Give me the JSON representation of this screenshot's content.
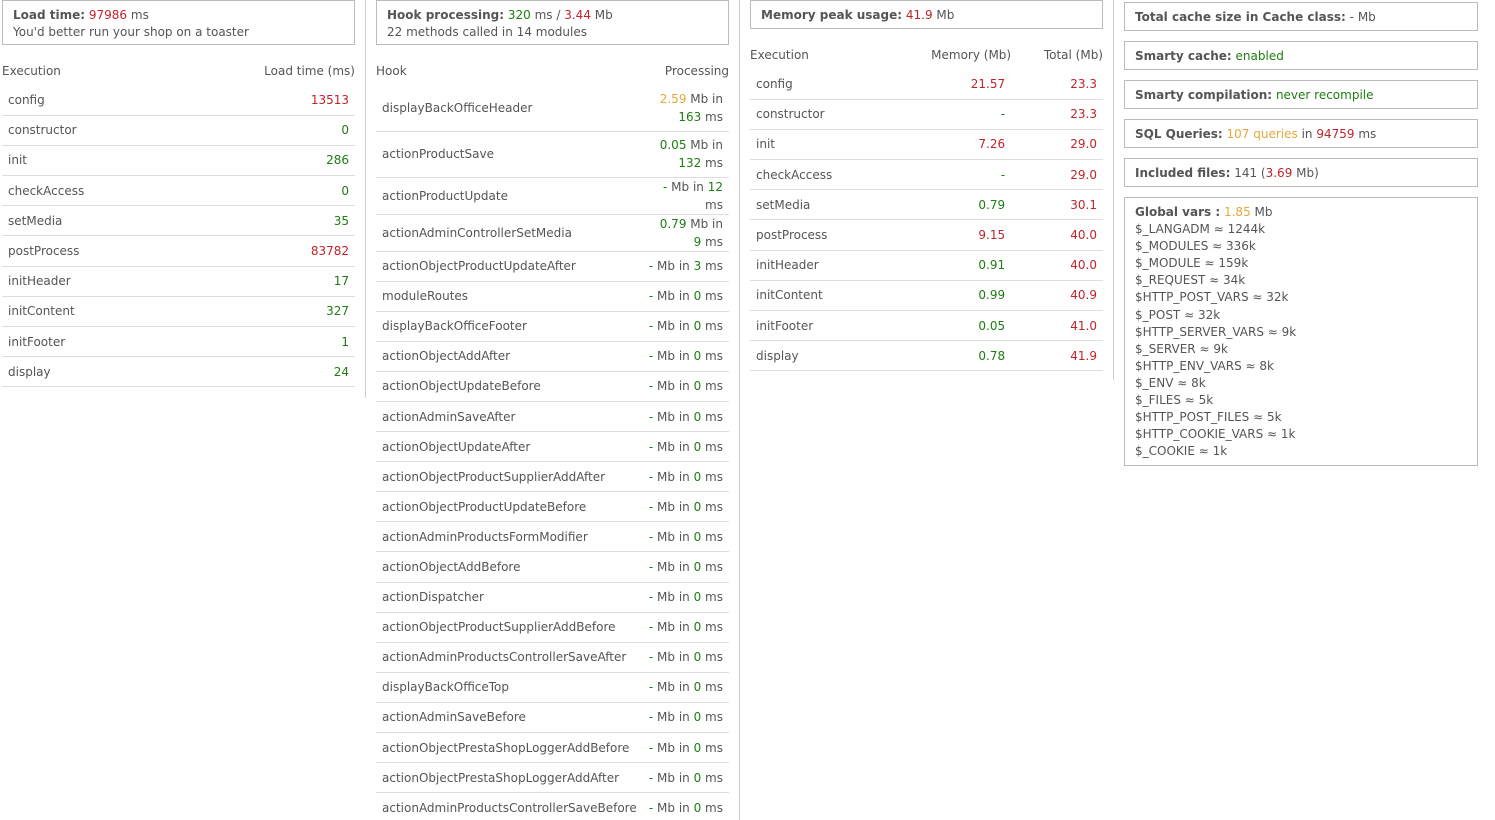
{
  "load": {
    "label": "Load time:",
    "value": "97986",
    "unit": "ms",
    "message": "You'd better run your shop on a toaster",
    "headers": [
      "Execution",
      "Load time (ms)"
    ],
    "rows": [
      {
        "name": "config",
        "value": "13513",
        "color": "#c0242b"
      },
      {
        "name": "constructor",
        "value": "0",
        "color": "#1e7d12"
      },
      {
        "name": "init",
        "value": "286",
        "color": "#1e7d12"
      },
      {
        "name": "checkAccess",
        "value": "0",
        "color": "#1e7d12"
      },
      {
        "name": "setMedia",
        "value": "35",
        "color": "#1e7d12"
      },
      {
        "name": "postProcess",
        "value": "83782",
        "color": "#c0242b"
      },
      {
        "name": "initHeader",
        "value": "17",
        "color": "#1e7d12"
      },
      {
        "name": "initContent",
        "value": "327",
        "color": "#1e7d12"
      },
      {
        "name": "initFooter",
        "value": "1",
        "color": "#1e7d12"
      },
      {
        "name": "display",
        "value": "24",
        "color": "#1e7d12"
      }
    ]
  },
  "hooks": {
    "label": "Hook processing:",
    "time": "320",
    "time_unit": "ms /",
    "mem": "3.44",
    "mem_unit": "Mb",
    "summary": "22 methods called in 14 modules",
    "headers": [
      "Hook",
      "Processing"
    ],
    "rows": [
      {
        "name": "displayBackOfficeHeader",
        "mem": "2.59",
        "mem_color": "#e8a73a",
        "time": "163",
        "time_color": "#1e7d12"
      },
      {
        "name": "actionProductSave",
        "mem": "0.05",
        "mem_color": "#1e7d12",
        "time": "132",
        "time_color": "#1e7d12"
      },
      {
        "name": "actionProductUpdate",
        "mem": "-",
        "mem_color": "#1e7d12",
        "time": "12",
        "time_color": "#1e7d12"
      },
      {
        "name": "actionAdminControllerSetMedia",
        "mem": "0.79",
        "mem_color": "#1e7d12",
        "time": "9",
        "time_color": "#1e7d12"
      },
      {
        "name": "actionObjectProductUpdateAfter",
        "mem": "-",
        "mem_color": "#1e7d12",
        "time": "3",
        "time_color": "#1e7d12"
      },
      {
        "name": "moduleRoutes",
        "mem": "-",
        "mem_color": "#1e7d12",
        "time": "0",
        "time_color": "#1e7d12"
      },
      {
        "name": "displayBackOfficeFooter",
        "mem": "-",
        "mem_color": "#1e7d12",
        "time": "0",
        "time_color": "#1e7d12"
      },
      {
        "name": "actionObjectAddAfter",
        "mem": "-",
        "mem_color": "#1e7d12",
        "time": "0",
        "time_color": "#1e7d12"
      },
      {
        "name": "actionObjectUpdateBefore",
        "mem": "-",
        "mem_color": "#1e7d12",
        "time": "0",
        "time_color": "#1e7d12"
      },
      {
        "name": "actionAdminSaveAfter",
        "mem": "-",
        "mem_color": "#1e7d12",
        "time": "0",
        "time_color": "#1e7d12"
      },
      {
        "name": "actionObjectUpdateAfter",
        "mem": "-",
        "mem_color": "#1e7d12",
        "time": "0",
        "time_color": "#1e7d12"
      },
      {
        "name": "actionObjectProductSupplierAddAfter",
        "mem": "-",
        "mem_color": "#1e7d12",
        "time": "0",
        "time_color": "#1e7d12"
      },
      {
        "name": "actionObjectProductUpdateBefore",
        "mem": "-",
        "mem_color": "#1e7d12",
        "time": "0",
        "time_color": "#1e7d12"
      },
      {
        "name": "actionAdminProductsFormModifier",
        "mem": "-",
        "mem_color": "#1e7d12",
        "time": "0",
        "time_color": "#1e7d12"
      },
      {
        "name": "actionObjectAddBefore",
        "mem": "-",
        "mem_color": "#1e7d12",
        "time": "0",
        "time_color": "#1e7d12"
      },
      {
        "name": "actionDispatcher",
        "mem": "-",
        "mem_color": "#1e7d12",
        "time": "0",
        "time_color": "#1e7d12"
      },
      {
        "name": "actionObjectProductSupplierAddBefore",
        "mem": "-",
        "mem_color": "#1e7d12",
        "time": "0",
        "time_color": "#1e7d12"
      },
      {
        "name": "actionAdminProductsControllerSaveAfter",
        "mem": "-",
        "mem_color": "#1e7d12",
        "time": "0",
        "time_color": "#1e7d12"
      },
      {
        "name": "displayBackOfficeTop",
        "mem": "-",
        "mem_color": "#1e7d12",
        "time": "0",
        "time_color": "#1e7d12"
      },
      {
        "name": "actionAdminSaveBefore",
        "mem": "-",
        "mem_color": "#1e7d12",
        "time": "0",
        "time_color": "#1e7d12"
      },
      {
        "name": "actionObjectPrestaShopLoggerAddBefore",
        "mem": "-",
        "mem_color": "#1e7d12",
        "time": "0",
        "time_color": "#1e7d12"
      },
      {
        "name": "actionObjectPrestaShopLoggerAddAfter",
        "mem": "-",
        "mem_color": "#1e7d12",
        "time": "0",
        "time_color": "#1e7d12"
      },
      {
        "name": "actionAdminProductsControllerSaveBefore",
        "mem": "-",
        "mem_color": "#1e7d12",
        "time": "0",
        "time_color": "#1e7d12"
      }
    ]
  },
  "memory": {
    "label": "Memory peak usage:",
    "value": "41.9",
    "unit": "Mb",
    "headers": [
      "Execution",
      "Memory (Mb)",
      "Total (Mb)"
    ],
    "rows": [
      {
        "name": "config",
        "mem": "21.57",
        "mem_color": "#c0242b",
        "total": "23.3"
      },
      {
        "name": "constructor",
        "mem": "-",
        "mem_color": "#1e7d12",
        "total": "23.3"
      },
      {
        "name": "init",
        "mem": "7.26",
        "mem_color": "#c0242b",
        "total": "29.0"
      },
      {
        "name": "checkAccess",
        "mem": "-",
        "mem_color": "#1e7d12",
        "total": "29.0"
      },
      {
        "name": "setMedia",
        "mem": "0.79",
        "mem_color": "#1e7d12",
        "total": "30.1"
      },
      {
        "name": "postProcess",
        "mem": "9.15",
        "mem_color": "#c0242b",
        "total": "40.0"
      },
      {
        "name": "initHeader",
        "mem": "0.91",
        "mem_color": "#1e7d12",
        "total": "40.0"
      },
      {
        "name": "initContent",
        "mem": "0.99",
        "mem_color": "#1e7d12",
        "total": "40.9"
      },
      {
        "name": "initFooter",
        "mem": "0.05",
        "mem_color": "#1e7d12",
        "total": "41.0"
      },
      {
        "name": "display",
        "mem": "0.78",
        "mem_color": "#1e7d12",
        "total": "41.9"
      }
    ]
  },
  "info": {
    "cache_label": "Total cache size in Cache class:",
    "cache_value": "-",
    "cache_unit": "Mb",
    "smarty_cache_label": "Smarty cache:",
    "smarty_cache_value": "enabled",
    "smarty_comp_label": "Smarty compilation:",
    "smarty_comp_value": "never recompile",
    "sql_label": "SQL Queries:",
    "sql_count": "107 queries",
    "sql_in": "in",
    "sql_time": "94759",
    "sql_unit": "ms",
    "files_label": "Included files:",
    "files_count": "141",
    "files_size": "3.69",
    "files_unit": "Mb",
    "globals_label": "Global vars :",
    "globals_size": "1.85",
    "globals_unit": "Mb",
    "globals": [
      "$_LANGADM ≈ 1244k",
      "$_MODULES ≈ 336k",
      "$_MODULE ≈ 159k",
      "$_REQUEST ≈ 34k",
      "$HTTP_POST_VARS ≈ 32k",
      "$_POST ≈ 32k",
      "$HTTP_SERVER_VARS ≈ 9k",
      "$_SERVER ≈ 9k",
      "$HTTP_ENV_VARS ≈ 8k",
      "$_ENV ≈ 8k",
      "$_FILES ≈ 5k",
      "$HTTP_POST_FILES ≈ 5k",
      "$HTTP_COOKIE_VARS ≈ 1k",
      "$_COOKIE ≈ 1k"
    ]
  }
}
